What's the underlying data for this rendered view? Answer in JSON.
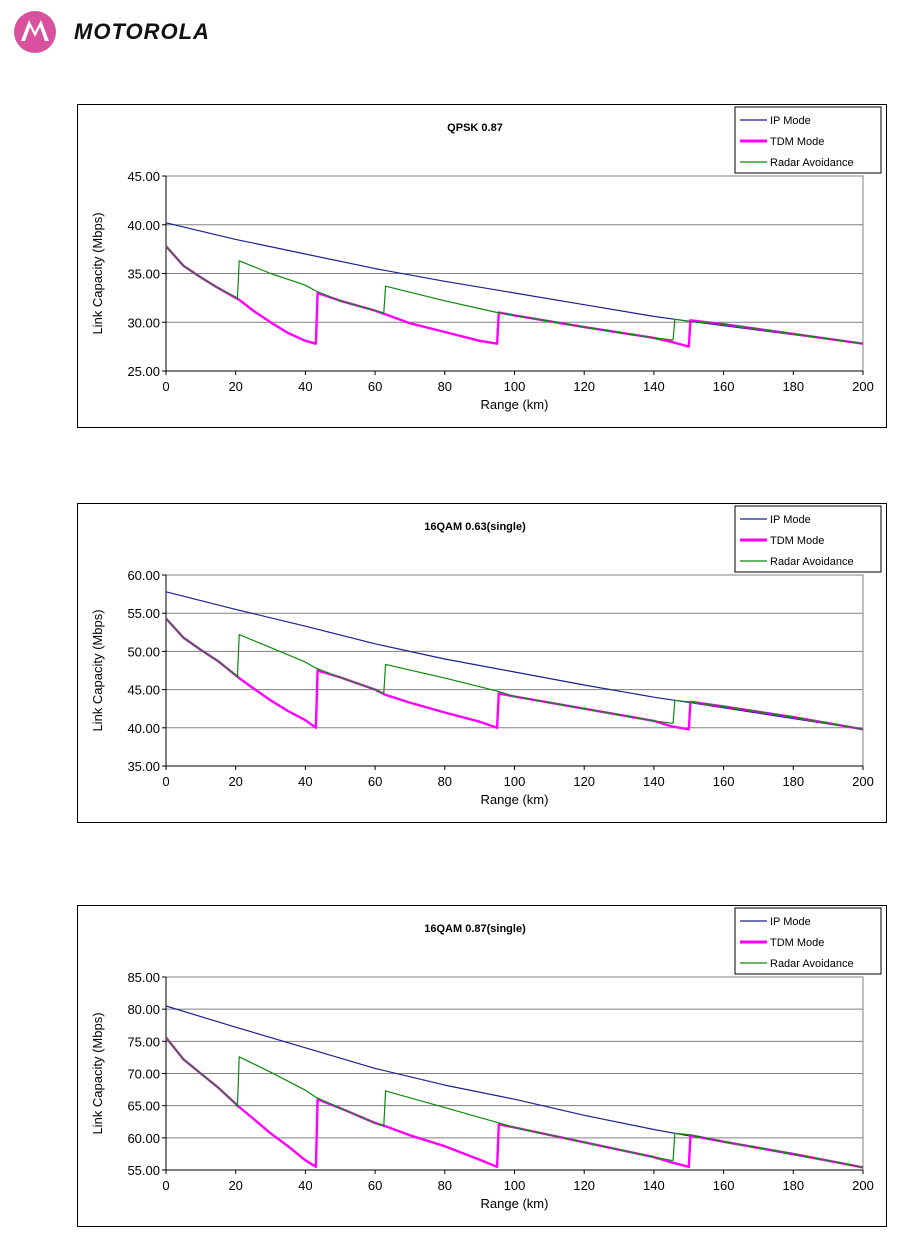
{
  "brand": {
    "name": "MOTOROLA",
    "logo_color": "#d9509f"
  },
  "colors": {
    "ip": "#1f1f8f",
    "tdm": "#ff00ff",
    "radar": "#0a8a0a",
    "overlap": "#7d4a9d"
  },
  "chart_data": [
    {
      "type": "line",
      "title": "QPSK 0.87",
      "xlabel": "Range (km)",
      "ylabel": "Link Capacity (Mbps)",
      "xlim": [
        0,
        200
      ],
      "ylim": [
        25,
        45
      ],
      "xticks": [
        "0",
        "20",
        "40",
        "60",
        "80",
        "100",
        "120",
        "140",
        "160",
        "180",
        "200"
      ],
      "yticks": [
        "25.00",
        "30.00",
        "35.00",
        "40.00",
        "45.00"
      ],
      "grid": "horizontal",
      "legend": "top-right",
      "series": [
        {
          "name": "IP Mode",
          "color_key": "ip",
          "x": [
            0,
            20,
            40,
            60,
            80,
            100,
            120,
            140,
            146,
            200
          ],
          "y": [
            40.2,
            38.5,
            37.0,
            35.5,
            34.2,
            33.0,
            31.8,
            30.6,
            30.3,
            27.8
          ]
        },
        {
          "name": "TDM Mode",
          "color_key": "tdm",
          "x": [
            0,
            5,
            10,
            15,
            21,
            25,
            30,
            35,
            40,
            43,
            43.5,
            50,
            60,
            63,
            70,
            80,
            90,
            95,
            95.5,
            100,
            120,
            140,
            145,
            150,
            150.5,
            160,
            180,
            200
          ],
          "y": [
            37.8,
            35.8,
            34.6,
            33.5,
            32.3,
            31.2,
            30.0,
            28.9,
            28.1,
            27.8,
            33.0,
            32.2,
            31.2,
            30.8,
            29.9,
            29.0,
            28.1,
            27.8,
            31.0,
            30.7,
            29.5,
            28.4,
            28.0,
            27.5,
            30.2,
            29.8,
            28.8,
            27.8
          ]
        },
        {
          "name": "Radar Avoidance",
          "color_key": "radar",
          "x": [
            0,
            5,
            10,
            15,
            20,
            20.5,
            21,
            30,
            40,
            43,
            50,
            60,
            62,
            62.5,
            63,
            80,
            95,
            100,
            120,
            140,
            145,
            145.5,
            146,
            150,
            160,
            180,
            200
          ],
          "y": [
            37.8,
            35.8,
            34.6,
            33.5,
            32.6,
            32.4,
            36.3,
            35.0,
            33.8,
            33.2,
            32.2,
            31.2,
            31.0,
            31.0,
            33.7,
            32.2,
            31.0,
            30.7,
            29.5,
            28.4,
            28.2,
            28.2,
            30.3,
            30.1,
            29.8,
            28.8,
            27.8
          ]
        }
      ]
    },
    {
      "type": "line",
      "title": "16QAM 0.63(single)",
      "xlabel": "Range (km)",
      "ylabel": "Link Capacity (Mbps)",
      "xlim": [
        0,
        200
      ],
      "ylim": [
        35,
        60
      ],
      "xticks": [
        "0",
        "20",
        "40",
        "60",
        "80",
        "100",
        "120",
        "140",
        "160",
        "180",
        "200"
      ],
      "yticks": [
        "35.00",
        "40.00",
        "45.00",
        "50.00",
        "55.00",
        "60.00"
      ],
      "grid": "horizontal",
      "legend": "top-right",
      "series": [
        {
          "name": "IP Mode",
          "color_key": "ip",
          "x": [
            0,
            20,
            40,
            60,
            80,
            100,
            120,
            140,
            146,
            200
          ],
          "y": [
            57.8,
            55.5,
            53.3,
            51.0,
            49.0,
            47.3,
            45.6,
            44.0,
            43.6,
            39.8
          ]
        },
        {
          "name": "TDM Mode",
          "color_key": "tdm",
          "x": [
            0,
            5,
            10,
            15,
            21,
            25,
            30,
            35,
            40,
            43,
            43.5,
            50,
            60,
            63,
            70,
            80,
            90,
            95,
            95.5,
            100,
            120,
            140,
            145,
            150,
            150.5,
            160,
            180,
            200
          ],
          "y": [
            54.3,
            51.8,
            50.2,
            48.7,
            46.5,
            45.2,
            43.6,
            42.2,
            41.0,
            40.0,
            47.5,
            46.6,
            45.0,
            44.3,
            43.3,
            42.0,
            40.8,
            40.0,
            44.5,
            44.1,
            42.5,
            40.9,
            40.2,
            39.8,
            43.4,
            42.8,
            41.4,
            39.8
          ]
        },
        {
          "name": "Radar Avoidance",
          "color_key": "radar",
          "x": [
            0,
            5,
            10,
            15,
            20,
            20.5,
            21,
            30,
            40,
            43,
            50,
            60,
            62,
            62.5,
            63,
            80,
            95,
            100,
            120,
            140,
            145,
            145.5,
            146,
            150,
            160,
            180,
            200
          ],
          "y": [
            54.3,
            51.8,
            50.2,
            48.7,
            46.9,
            46.6,
            52.2,
            50.5,
            48.6,
            47.8,
            46.6,
            45.0,
            44.6,
            44.6,
            48.3,
            46.5,
            44.8,
            44.1,
            42.5,
            40.9,
            40.6,
            40.6,
            43.6,
            43.4,
            42.8,
            41.4,
            39.8
          ]
        }
      ]
    },
    {
      "type": "line",
      "title": "16QAM 0.87(single)",
      "xlabel": "Range (km)",
      "ylabel": "Link Capacity (Mbps)",
      "xlim": [
        0,
        200
      ],
      "ylim": [
        55,
        85
      ],
      "xticks": [
        "0",
        "20",
        "40",
        "60",
        "80",
        "100",
        "120",
        "140",
        "160",
        "180",
        "200"
      ],
      "yticks": [
        "55.00",
        "60.00",
        "65.00",
        "70.00",
        "75.00",
        "80.00",
        "85.00"
      ],
      "grid": "horizontal",
      "legend": "top-right",
      "series": [
        {
          "name": "IP Mode",
          "color_key": "ip",
          "x": [
            0,
            20,
            40,
            60,
            80,
            100,
            120,
            140,
            146,
            200
          ],
          "y": [
            80.5,
            77.2,
            74.0,
            70.8,
            68.2,
            66.0,
            63.5,
            61.3,
            60.7,
            55.4
          ]
        },
        {
          "name": "TDM Mode",
          "color_key": "tdm",
          "x": [
            0,
            5,
            10,
            15,
            21,
            25,
            30,
            35,
            40,
            43,
            43.5,
            50,
            60,
            63,
            70,
            80,
            90,
            95,
            95.5,
            100,
            120,
            140,
            145,
            150,
            150.5,
            160,
            180,
            200
          ],
          "y": [
            75.6,
            72.2,
            70.0,
            67.8,
            64.8,
            63.0,
            60.7,
            58.7,
            56.5,
            55.5,
            66.0,
            64.6,
            62.3,
            61.8,
            60.4,
            58.7,
            56.6,
            55.5,
            62.1,
            61.6,
            59.3,
            57.0,
            56.2,
            55.5,
            60.4,
            59.4,
            57.5,
            55.4
          ]
        },
        {
          "name": "Radar Avoidance",
          "color_key": "radar",
          "x": [
            0,
            5,
            10,
            15,
            20,
            20.5,
            21,
            30,
            40,
            43,
            50,
            60,
            62,
            62.5,
            63,
            80,
            95,
            100,
            120,
            140,
            145,
            145.5,
            146,
            150,
            160,
            180,
            200
          ],
          "y": [
            75.6,
            72.2,
            70.0,
            67.8,
            65.3,
            64.8,
            72.6,
            70.2,
            67.4,
            66.3,
            64.6,
            62.3,
            61.9,
            61.9,
            67.3,
            64.7,
            62.4,
            61.6,
            59.3,
            57.0,
            56.5,
            56.5,
            60.7,
            60.5,
            59.4,
            57.5,
            55.4
          ]
        }
      ]
    }
  ]
}
